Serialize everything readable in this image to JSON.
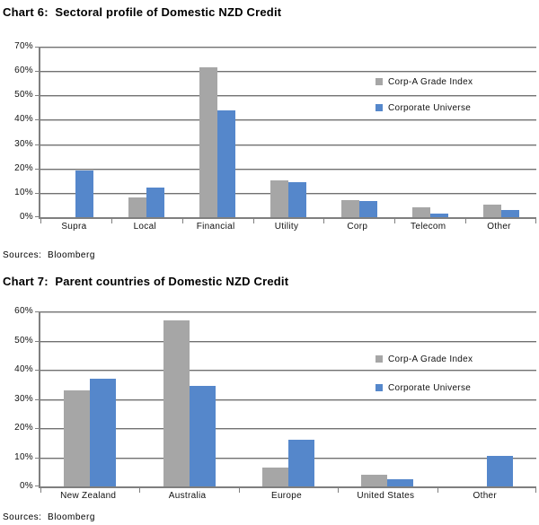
{
  "chart_data": [
    {
      "type": "bar",
      "title": "Chart 6:  Sectoral profile of Domestic NZD Credit",
      "source": "Sources:  Bloomberg",
      "categories": [
        "Supra",
        "Local",
        "Financial",
        "Utility",
        "Corp",
        "Telecom",
        "Other"
      ],
      "series": [
        {
          "name": "Corp-A Grade Index",
          "color": "#A6A6A6",
          "values": [
            0,
            8,
            61.5,
            15,
            7,
            4,
            5
          ]
        },
        {
          "name": "Corporate Universe",
          "color": "#5587CB",
          "values": [
            19,
            12,
            44,
            14.5,
            6.5,
            1.5,
            3
          ]
        }
      ],
      "xlabel": "",
      "ylabel": "",
      "ylim": [
        0,
        70
      ],
      "ytick_step": 10,
      "ytick_labels": [
        "0%",
        "10%",
        "20%",
        "30%",
        "40%",
        "50%",
        "60%",
        "70%"
      ],
      "grid": true,
      "legend_position": "inside-top-right"
    },
    {
      "type": "bar",
      "title": "Chart 7:  Parent countries of Domestic NZD Credit",
      "source": "Sources:  Bloomberg",
      "categories": [
        "New Zealand",
        "Australia",
        "Europe",
        "United States",
        "Other"
      ],
      "series": [
        {
          "name": "Corp-A Grade Index",
          "color": "#A6A6A6",
          "values": [
            33,
            57,
            6.5,
            4,
            0
          ]
        },
        {
          "name": "Corporate Universe",
          "color": "#5587CB",
          "values": [
            37,
            34.5,
            16,
            2.5,
            10.5
          ]
        }
      ],
      "xlabel": "",
      "ylabel": "",
      "ylim": [
        0,
        60
      ],
      "ytick_step": 10,
      "ytick_labels": [
        "0%",
        "10%",
        "20%",
        "30%",
        "40%",
        "50%",
        "60%"
      ],
      "grid": true,
      "legend_position": "inside-top-right"
    }
  ],
  "colors": {
    "bar_gray": "#A6A6A6",
    "bar_blue": "#5587CB",
    "gridline": "#7f7f7f",
    "text": "#111111"
  }
}
